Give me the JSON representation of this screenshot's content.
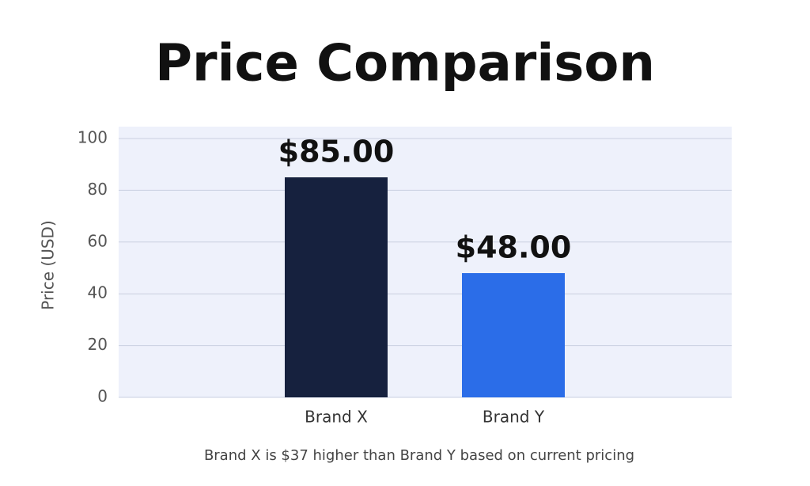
{
  "chart_data": {
    "type": "bar",
    "title": "Price Comparison",
    "y_label": "Price (USD)",
    "categories": [
      "Brand X",
      "Brand Y"
    ],
    "values": [
      85,
      48
    ],
    "value_labels": [
      "$85.00",
      "$48.00"
    ],
    "colors": [
      "#16213e",
      "#2b6de8"
    ],
    "ylim": [
      0,
      100
    ],
    "yticks": [
      0,
      20,
      40,
      60,
      80,
      100
    ],
    "grid": true,
    "note": "Brand X is $37 higher than Brand Y based on current pricing"
  }
}
